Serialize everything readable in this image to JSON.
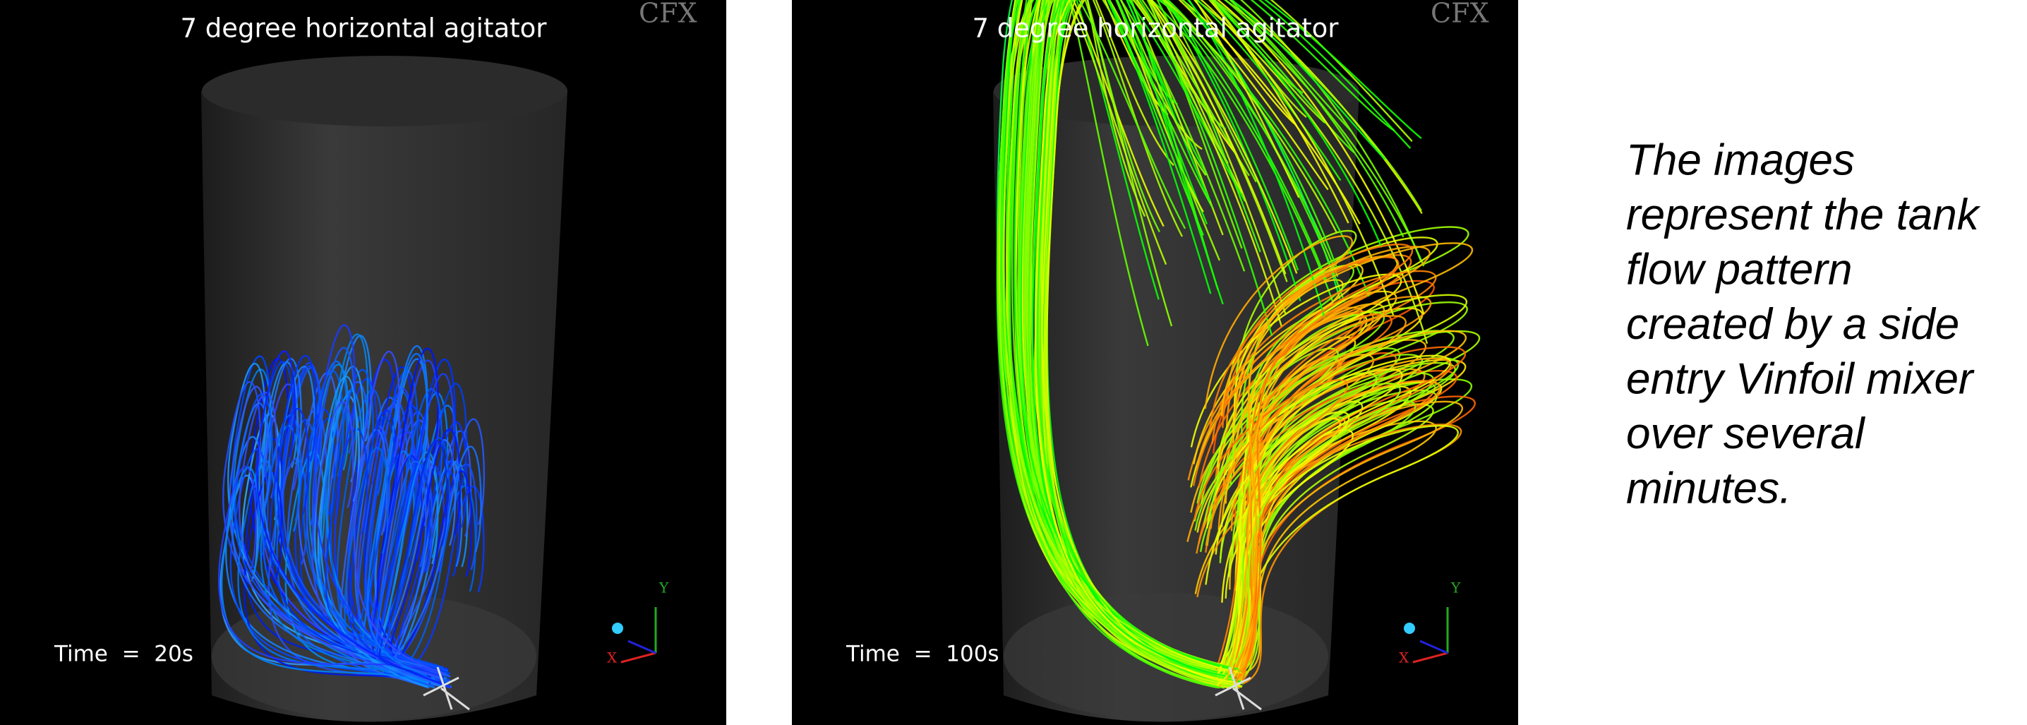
{
  "panels": [
    {
      "title": "7 degree horizontal agitator",
      "time_label": "Time  =  20s",
      "logo": "CFX",
      "axis_x": "X",
      "axis_y": "Y"
    },
    {
      "title": "7 degree horizontal agitator",
      "time_label": "Time  =  100s",
      "logo": "CFX",
      "axis_x": "X",
      "axis_y": "Y"
    }
  ],
  "caption": {
    "lines": [
      "The images",
      "represent the tank",
      "flow pattern",
      "created by a side",
      "entry Vinfoil mixer",
      "over several",
      "minutes."
    ]
  }
}
